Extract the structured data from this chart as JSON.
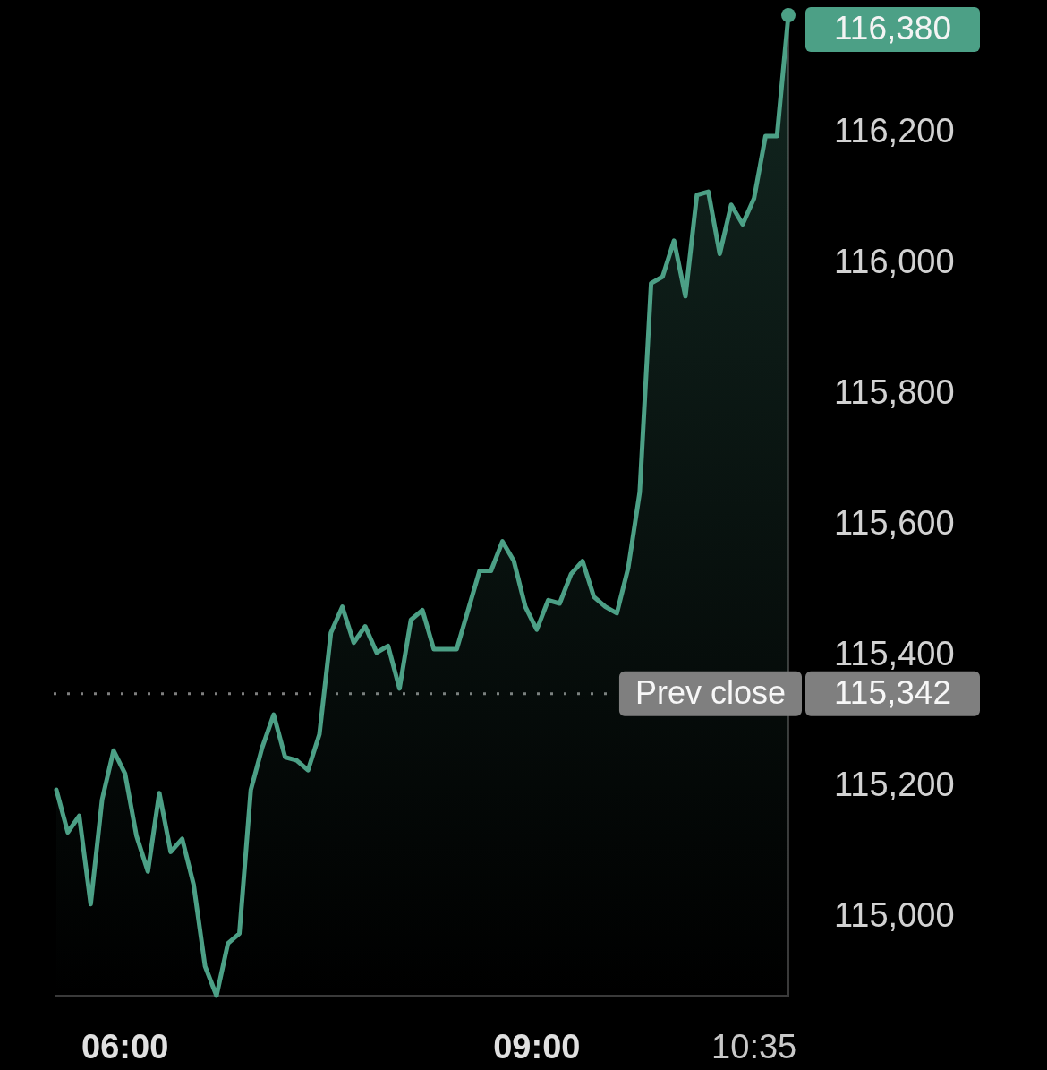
{
  "chart_data": {
    "type": "area",
    "x": [
      5.5,
      5.5833,
      5.6667,
      5.75,
      5.8333,
      5.9167,
      6,
      6.0833,
      6.1667,
      6.25,
      6.3333,
      6.4167,
      6.5,
      6.5833,
      6.6667,
      6.75,
      6.8333,
      6.9167,
      7,
      7.0833,
      7.1667,
      7.25,
      7.3333,
      7.4167,
      7.5,
      7.5833,
      7.6667,
      7.75,
      7.8333,
      7.9167,
      8,
      8.0833,
      8.1667,
      8.25,
      8.3333,
      8.4167,
      8.5,
      8.5833,
      8.6667,
      8.75,
      8.8333,
      8.9167,
      9,
      9.0833,
      9.1667,
      9.25,
      9.3333,
      9.4167,
      9.5,
      9.5833,
      9.6667,
      9.75,
      9.8333,
      9.9167,
      10,
      10.0833,
      10.1667,
      10.25,
      10.3333,
      10.4167,
      10.5,
      10.5833,
      10.6667,
      10.75,
      10.8333
    ],
    "series": [
      {
        "color": "#4ca086",
        "values": [
          115195,
          115130,
          115155,
          115020,
          115180,
          115255,
          115220,
          115125,
          115070,
          115190,
          115100,
          115120,
          115050,
          114925,
          114880,
          114960,
          114975,
          115195,
          115260,
          115310,
          115245,
          115240,
          115225,
          115280,
          115435,
          115475,
          115420,
          115445,
          115405,
          115415,
          115350,
          115455,
          115470,
          115410,
          115410,
          115410,
          115470,
          115530,
          115530,
          115575,
          115545,
          115475,
          115440,
          115485,
          115480,
          115525,
          115545,
          115490,
          115475,
          115465,
          115535,
          115650,
          115970,
          115980,
          116035,
          115950,
          116105,
          116110,
          116015,
          116090,
          116060,
          116100,
          116195,
          116195,
          116380
        ],
        "value_labels": [
          null,
          null,
          null,
          null,
          null,
          null,
          null,
          null,
          null,
          null,
          null,
          null,
          null,
          null,
          null,
          null,
          null,
          null,
          null,
          null,
          null,
          null,
          null,
          null,
          null,
          null,
          null,
          null,
          null,
          null,
          null,
          null,
          null,
          null,
          null,
          null,
          null,
          null,
          null,
          null,
          null,
          null,
          null,
          null,
          null,
          null,
          null,
          null,
          null,
          null,
          null,
          null,
          null,
          null,
          null,
          null,
          null,
          null,
          null,
          null,
          null,
          null,
          null,
          null,
          "116,380"
        ]
      }
    ],
    "xlim": [
      5.5,
      10.8333
    ],
    "ylim": [
      114880,
      116380
    ],
    "xticks": [
      {
        "value": 6,
        "label": "06:00"
      },
      {
        "value": 9,
        "label": "09:00"
      },
      {
        "value": 10.5833,
        "label": "10:35"
      }
    ],
    "yticks": [
      {
        "value": 115000,
        "label": "115,000"
      },
      {
        "value": 115200,
        "label": "115,200"
      },
      {
        "value": 115400,
        "label": "115,400"
      },
      {
        "value": 115600,
        "label": "115,600"
      },
      {
        "value": 115800,
        "label": "115,800"
      },
      {
        "value": 116000,
        "label": "116,000"
      },
      {
        "value": 116200,
        "label": "116,200"
      }
    ],
    "ref_lines": [
      {
        "axis": "y",
        "value": 115342,
        "label": "Prev close",
        "color": "#7f7f7f",
        "line_style": "dotted"
      }
    ],
    "annotations": [
      "115,342"
    ],
    "grid": false,
    "legend": false
  }
}
